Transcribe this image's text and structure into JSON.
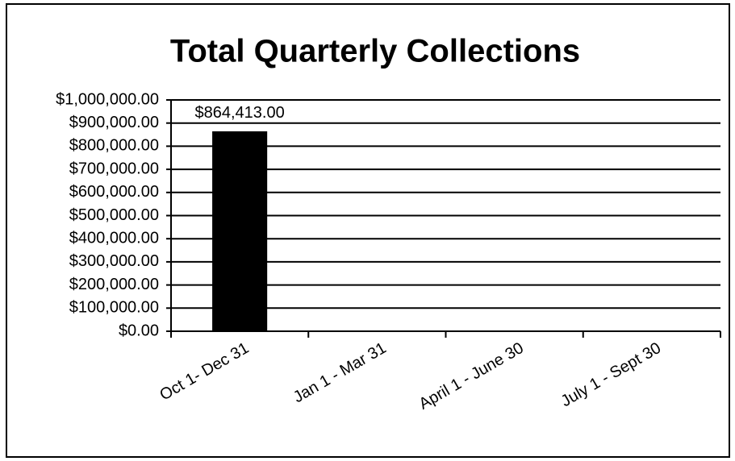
{
  "chart_data": {
    "type": "bar",
    "title": "Total Quarterly Collections",
    "categories": [
      "Oct 1- Dec 31",
      "Jan 1 - Mar 31",
      "April 1 - June 30",
      "July 1 - Sept 30"
    ],
    "values": [
      864413,
      null,
      null,
      null
    ],
    "value_labels": [
      "$864,413.00",
      null,
      null,
      null
    ],
    "color": "#000000",
    "ylim": [
      0,
      1000000
    ],
    "yticks": [
      {
        "value": 0,
        "label": "$0.00"
      },
      {
        "value": 100000,
        "label": "$100,000.00"
      },
      {
        "value": 200000,
        "label": "$200,000.00"
      },
      {
        "value": 300000,
        "label": "$300,000.00"
      },
      {
        "value": 400000,
        "label": "$400,000.00"
      },
      {
        "value": 500000,
        "label": "$500,000.00"
      },
      {
        "value": 600000,
        "label": "$600,000.00"
      },
      {
        "value": 700000,
        "label": "$700,000.00"
      },
      {
        "value": 800000,
        "label": "$800,000.00"
      },
      {
        "value": 900000,
        "label": "$900,000.00"
      },
      {
        "value": 1000000,
        "label": "$1,000,000.00"
      }
    ],
    "grid": true
  }
}
